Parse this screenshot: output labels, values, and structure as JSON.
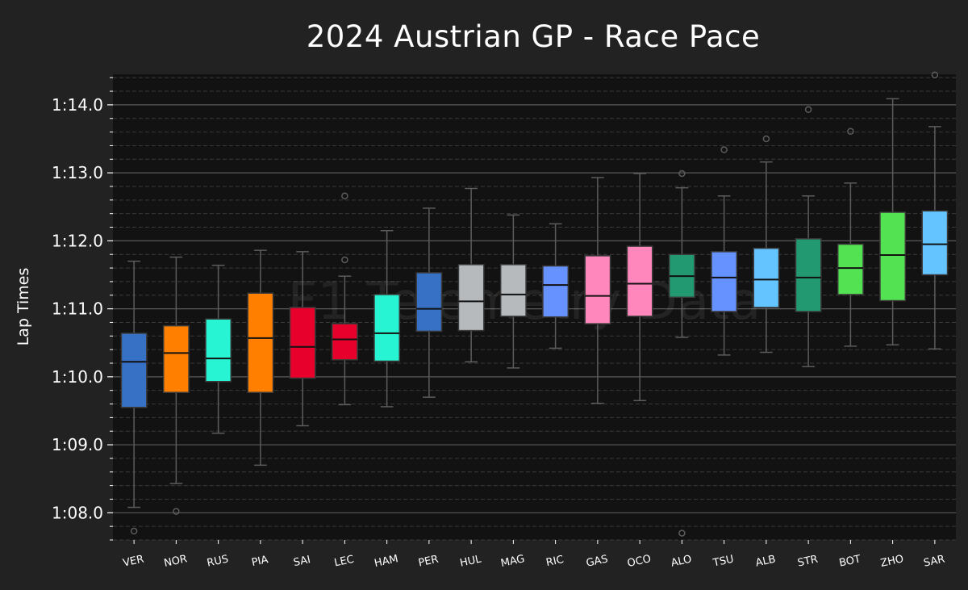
{
  "chart_data": {
    "type": "box",
    "title": "2024 Austrian GP - Race Pace",
    "xlabel": "",
    "ylabel": "Lap Times",
    "watermark": "F1 Telemetry Data",
    "ylim": [
      67.6,
      74.45
    ],
    "yticks": [
      {
        "value": 68,
        "label": "1:08.0"
      },
      {
        "value": 69,
        "label": "1:09.0"
      },
      {
        "value": 70,
        "label": "1:10.0"
      },
      {
        "value": 71,
        "label": "1:11.0"
      },
      {
        "value": 72,
        "label": "1:12.0"
      },
      {
        "value": 73,
        "label": "1:13.0"
      },
      {
        "value": 74,
        "label": "1:14.0"
      }
    ],
    "grid": true,
    "background": "#121212",
    "page_background": "#222222",
    "drivers": [
      {
        "name": "VER",
        "color": "#3671C6",
        "whislo": 68.08,
        "q1": 69.55,
        "med": 70.22,
        "q3": 70.64,
        "whishi": 71.7,
        "fliers": [
          67.73
        ]
      },
      {
        "name": "NOR",
        "color": "#FF8000",
        "whislo": 68.43,
        "q1": 69.77,
        "med": 70.35,
        "q3": 70.75,
        "whishi": 71.76,
        "fliers": [
          68.02
        ]
      },
      {
        "name": "RUS",
        "color": "#27F4D2",
        "whislo": 69.17,
        "q1": 69.93,
        "med": 70.27,
        "q3": 70.85,
        "whishi": 71.64,
        "fliers": []
      },
      {
        "name": "PIA",
        "color": "#FF8000",
        "whislo": 68.7,
        "q1": 69.77,
        "med": 70.57,
        "q3": 71.23,
        "whishi": 71.86,
        "fliers": []
      },
      {
        "name": "SAI",
        "color": "#E8002D",
        "whislo": 69.28,
        "q1": 69.98,
        "med": 70.44,
        "q3": 71.02,
        "whishi": 71.84,
        "fliers": []
      },
      {
        "name": "LEC",
        "color": "#E8002D",
        "whislo": 69.59,
        "q1": 70.25,
        "med": 70.55,
        "q3": 70.78,
        "whishi": 71.48,
        "fliers": [
          71.72,
          72.66
        ]
      },
      {
        "name": "HAM",
        "color": "#27F4D2",
        "whislo": 69.56,
        "q1": 70.23,
        "med": 70.64,
        "q3": 71.21,
        "whishi": 72.15,
        "fliers": []
      },
      {
        "name": "PER",
        "color": "#3671C6",
        "whislo": 69.7,
        "q1": 70.67,
        "med": 71.0,
        "q3": 71.53,
        "whishi": 72.48,
        "fliers": []
      },
      {
        "name": "HUL",
        "color": "#B6BABD",
        "whislo": 70.22,
        "q1": 70.68,
        "med": 71.11,
        "q3": 71.65,
        "whishi": 72.77,
        "fliers": []
      },
      {
        "name": "MAG",
        "color": "#B6BABD",
        "whislo": 70.13,
        "q1": 70.89,
        "med": 71.21,
        "q3": 71.65,
        "whishi": 72.38,
        "fliers": []
      },
      {
        "name": "RIC",
        "color": "#6692FF",
        "whislo": 70.42,
        "q1": 70.88,
        "med": 71.35,
        "q3": 71.63,
        "whishi": 72.25,
        "fliers": []
      },
      {
        "name": "GAS",
        "color": "#FF87BC",
        "whislo": 69.61,
        "q1": 70.78,
        "med": 71.19,
        "q3": 71.78,
        "whishi": 72.93,
        "fliers": []
      },
      {
        "name": "OCO",
        "color": "#FF87BC",
        "whislo": 69.65,
        "q1": 70.89,
        "med": 71.37,
        "q3": 71.92,
        "whishi": 72.99,
        "fliers": []
      },
      {
        "name": "ALO",
        "color": "#229971",
        "whislo": 70.58,
        "q1": 71.17,
        "med": 71.48,
        "q3": 71.8,
        "whishi": 72.78,
        "fliers": [
          67.7,
          72.99
        ]
      },
      {
        "name": "TSU",
        "color": "#6692FF",
        "whislo": 70.32,
        "q1": 70.96,
        "med": 71.46,
        "q3": 71.84,
        "whishi": 72.66,
        "fliers": [
          73.34
        ]
      },
      {
        "name": "ALB",
        "color": "#64C4FF",
        "whislo": 70.36,
        "q1": 71.02,
        "med": 71.43,
        "q3": 71.89,
        "whishi": 73.16,
        "fliers": [
          73.5
        ]
      },
      {
        "name": "STR",
        "color": "#229971",
        "whislo": 70.15,
        "q1": 70.96,
        "med": 71.46,
        "q3": 72.03,
        "whishi": 72.66,
        "fliers": [
          73.93
        ]
      },
      {
        "name": "BOT",
        "color": "#52E252",
        "whislo": 70.45,
        "q1": 71.21,
        "med": 71.6,
        "q3": 71.95,
        "whishi": 72.85,
        "fliers": [
          73.61
        ]
      },
      {
        "name": "ZHO",
        "color": "#52E252",
        "whislo": 70.47,
        "q1": 71.12,
        "med": 71.79,
        "q3": 72.42,
        "whishi": 74.09,
        "fliers": []
      },
      {
        "name": "SAR",
        "color": "#64C4FF",
        "whislo": 70.41,
        "q1": 71.5,
        "med": 71.95,
        "q3": 72.44,
        "whishi": 73.68,
        "fliers": [
          74.44
        ]
      }
    ]
  }
}
